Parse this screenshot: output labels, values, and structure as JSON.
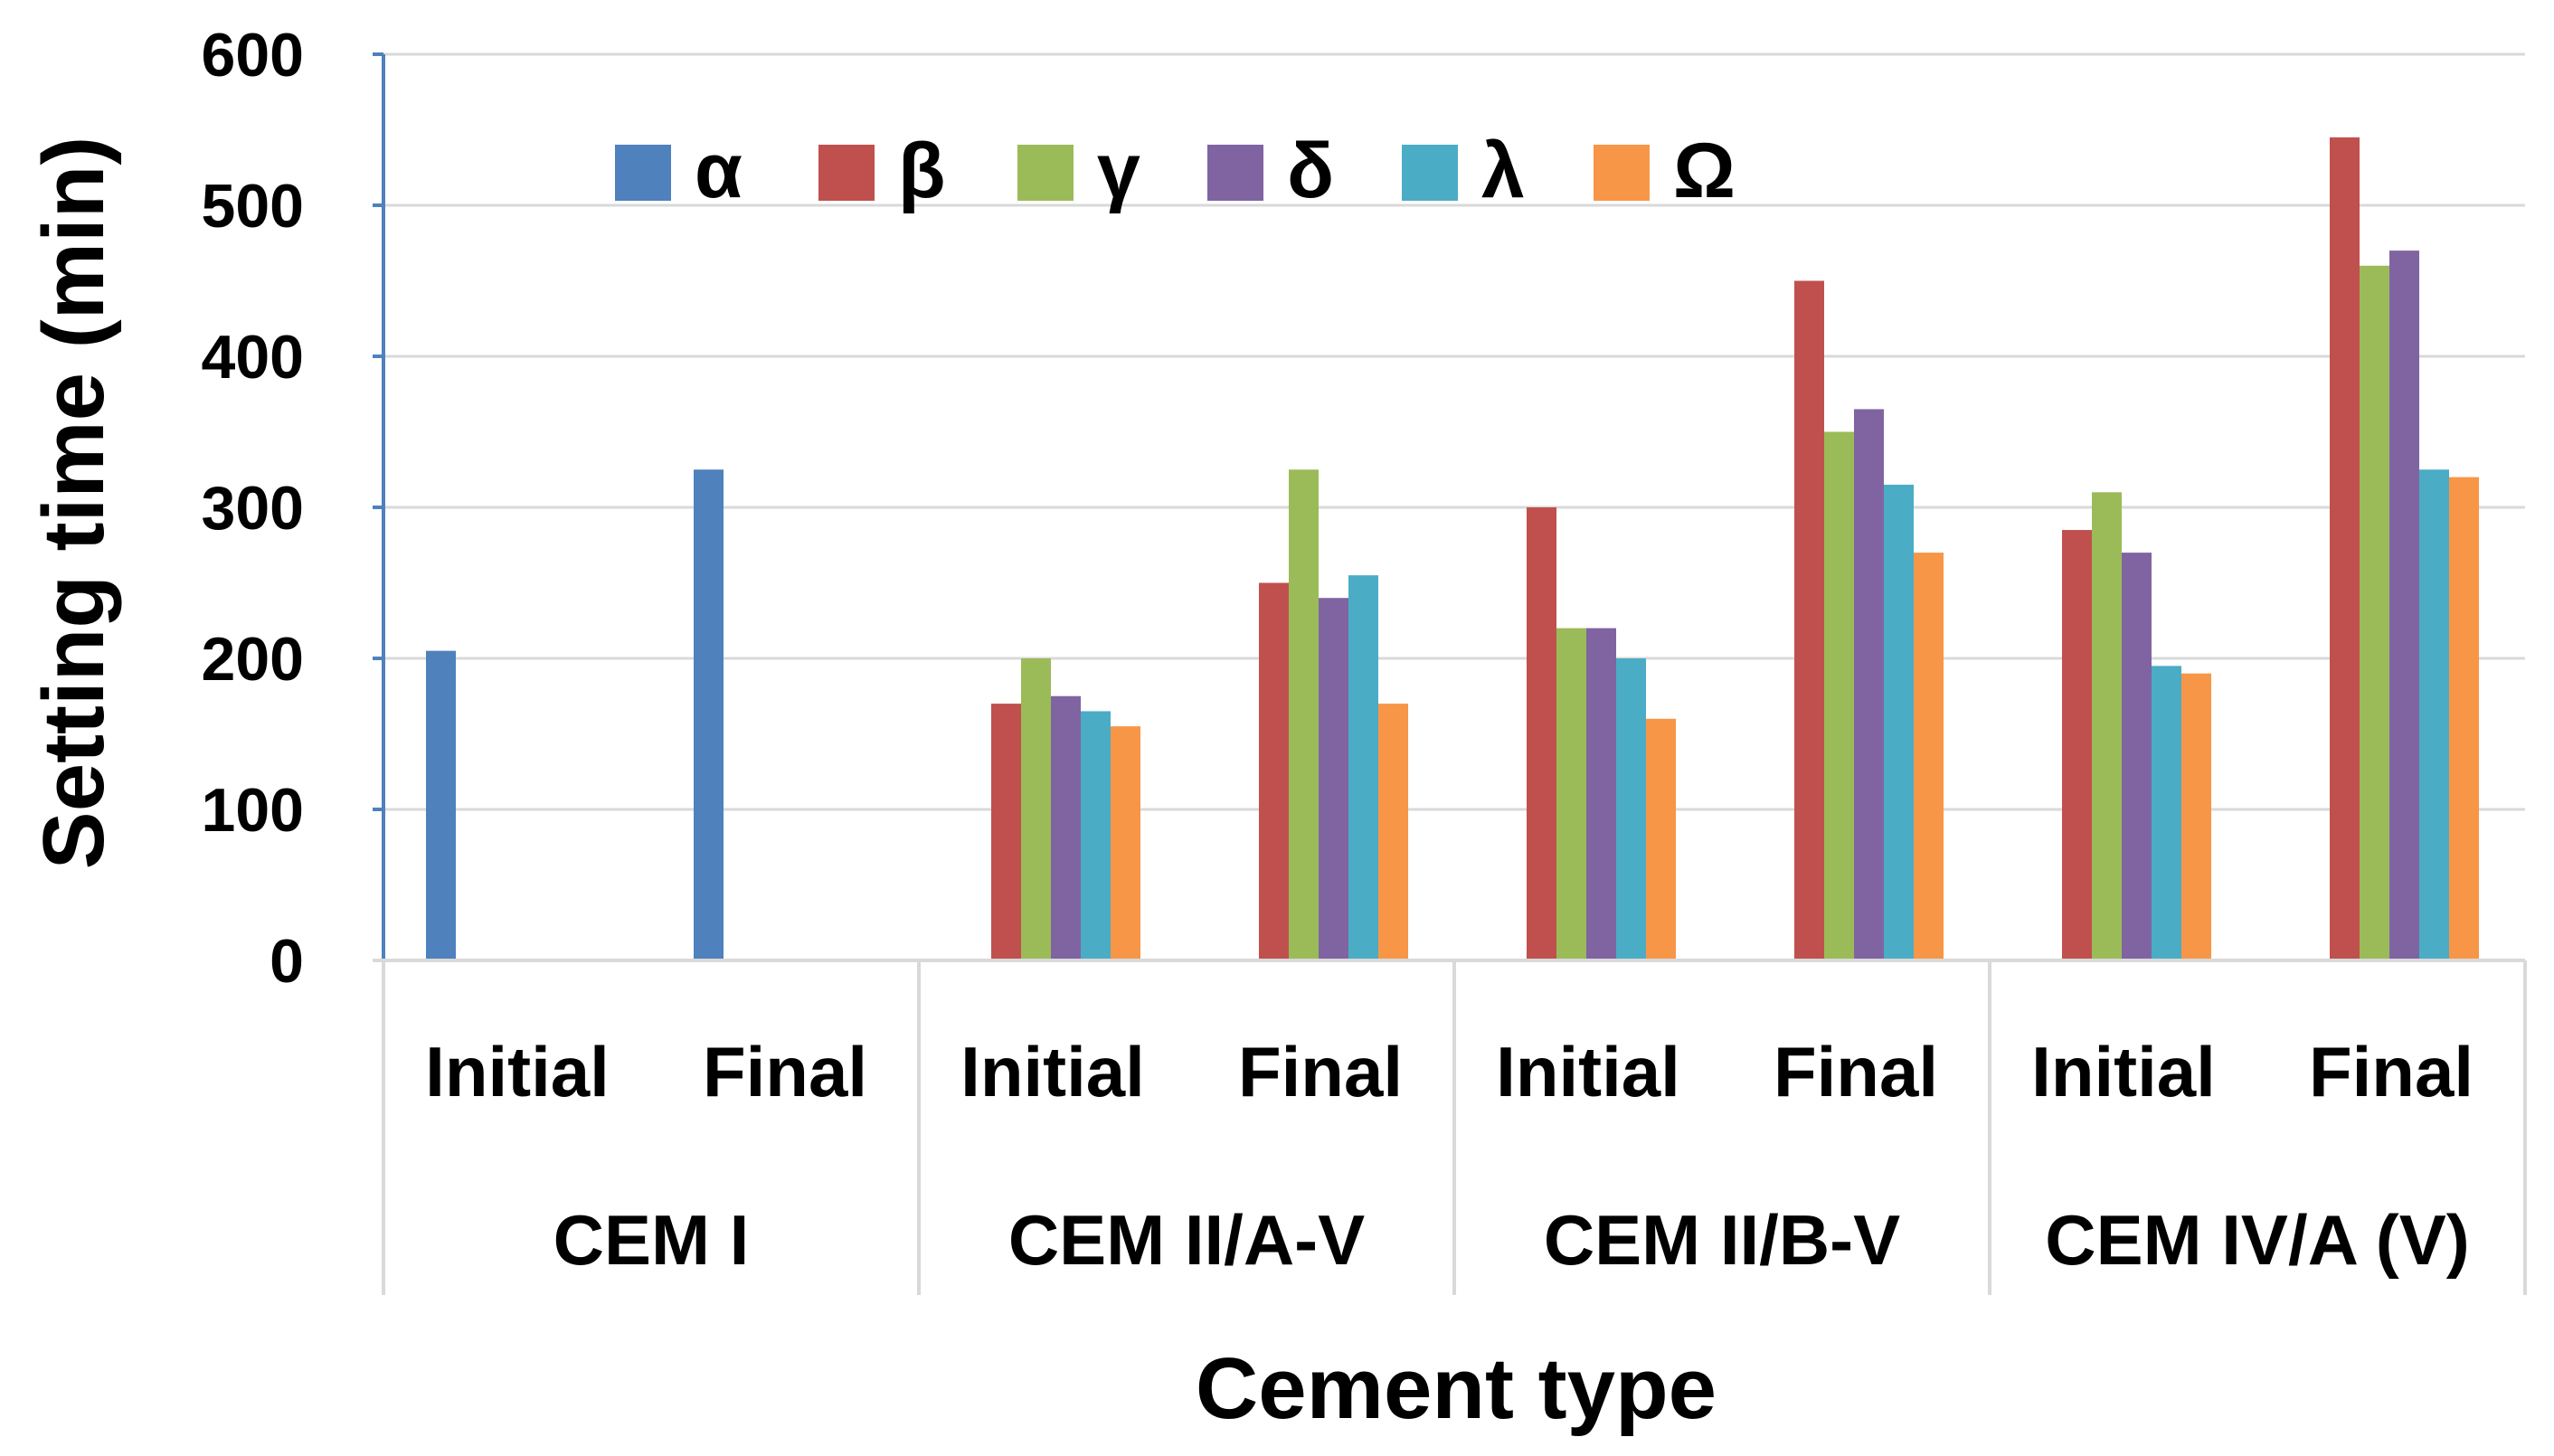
{
  "chart_data": {
    "type": "bar",
    "title": "",
    "xlabel": "Cement type",
    "ylabel": "Setting time (min)",
    "ylim": [
      0,
      600
    ],
    "yticks": [
      "0",
      "100",
      "200",
      "300",
      "400",
      "500",
      "600"
    ],
    "grid": true,
    "legend_position": "top-left",
    "groups": [
      {
        "label": "CEM I",
        "categories": [
          "Initial",
          "Final"
        ]
      },
      {
        "label": "CEM II/A-V",
        "categories": [
          "Initial",
          "Final"
        ]
      },
      {
        "label": "CEM II/B-V",
        "categories": [
          "Initial",
          "Final"
        ]
      },
      {
        "label": "CEM IV/A (V)",
        "categories": [
          "Initial",
          "Final"
        ]
      }
    ],
    "series": [
      {
        "name": "α",
        "color": "#4F81BD",
        "values": [
          205,
          325,
          null,
          null,
          null,
          null,
          null,
          null
        ]
      },
      {
        "name": "β",
        "color": "#C0504D",
        "values": [
          null,
          null,
          170,
          250,
          300,
          450,
          285,
          545
        ]
      },
      {
        "name": "γ",
        "color": "#9BBB59",
        "values": [
          null,
          null,
          200,
          325,
          220,
          350,
          310,
          460
        ]
      },
      {
        "name": "δ",
        "color": "#8064A2",
        "values": [
          null,
          null,
          175,
          240,
          220,
          365,
          270,
          470
        ]
      },
      {
        "name": "λ",
        "color": "#4BACC6",
        "values": [
          null,
          null,
          165,
          255,
          200,
          315,
          195,
          325
        ]
      },
      {
        "name": "Ω",
        "color": "#F79646",
        "values": [
          null,
          null,
          155,
          170,
          160,
          270,
          190,
          320
        ]
      }
    ]
  }
}
